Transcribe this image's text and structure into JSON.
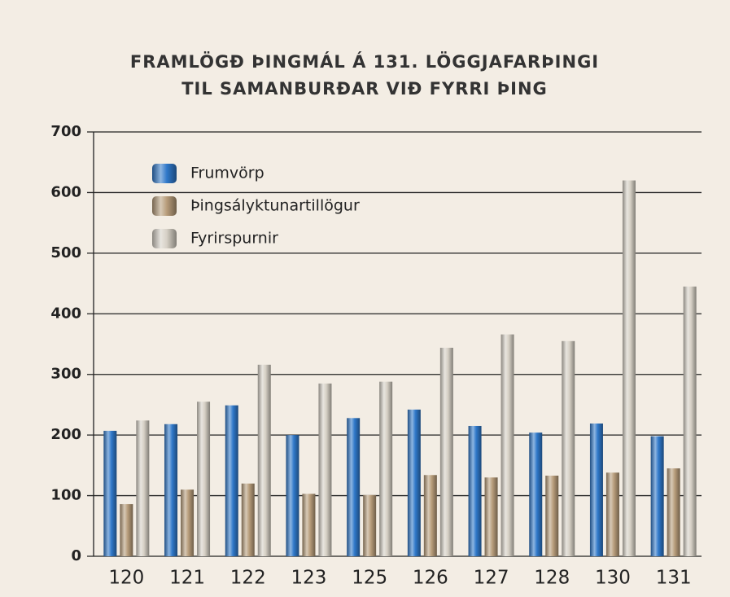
{
  "chart_data": {
    "type": "bar",
    "title": [
      "FRAMLÖGÐ ÞINGMÁL Á 131. LÖGGJAFARÞINGI",
      "TIL SAMANBURÐAR VIÐ FYRRI ÞING"
    ],
    "categories": [
      "120",
      "121",
      "122",
      "123",
      "125",
      "126",
      "127",
      "128",
      "130",
      "131"
    ],
    "series": [
      {
        "name": "Frumvörp",
        "color": "#2f78c9",
        "values": [
          207,
          218,
          249,
          200,
          228,
          242,
          215,
          204,
          219,
          198
        ]
      },
      {
        "name": "Þingsályktunartillögur",
        "color": "#b79c7a",
        "values": [
          86,
          110,
          120,
          103,
          101,
          134,
          130,
          133,
          138,
          145
        ]
      },
      {
        "name": "Fyrirspurnir",
        "color": "#d6d0c5",
        "values": [
          224,
          255,
          316,
          285,
          288,
          344,
          366,
          355,
          620,
          445
        ]
      }
    ],
    "ylim": [
      0,
      700
    ],
    "yticks": [
      0,
      100,
      200,
      300,
      400,
      500,
      600,
      700
    ],
    "grid": true,
    "legend": "top-left"
  }
}
